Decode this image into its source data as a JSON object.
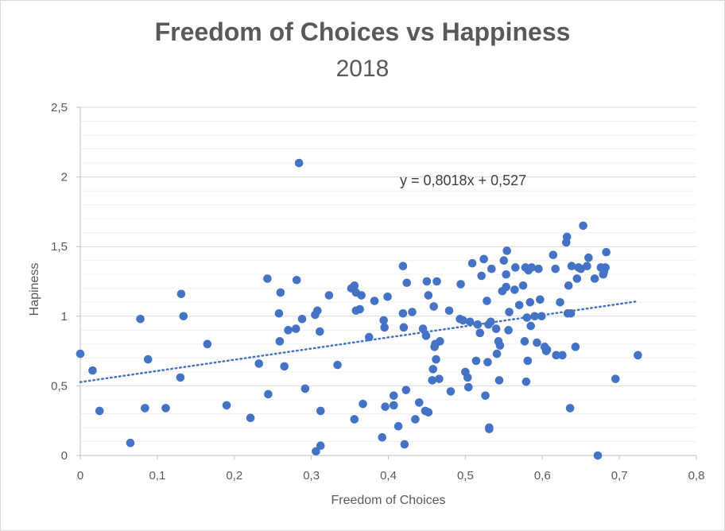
{
  "chart_data": {
    "type": "scatter",
    "title": "Freedom of Choices vs Happiness",
    "subtitle": "2018",
    "xlabel": "Freedom of Choices",
    "ylabel": "Hapiness",
    "xlim": [
      0,
      0.8
    ],
    "ylim": [
      0,
      2.5
    ],
    "x_ticks": [
      "0",
      "0,1",
      "0,2",
      "0,3",
      "0,4",
      "0,5",
      "0,6",
      "0,7",
      "0,8"
    ],
    "y_ticks": [
      "0",
      "0,5",
      "1",
      "1,5",
      "2",
      "2,5"
    ],
    "grid": true,
    "marker_color": "#4472c4",
    "trendline": {
      "slope": 0.8018,
      "intercept": 0.527,
      "x_range": [
        0,
        0.724
      ],
      "color": "#4472c4",
      "label": "y = 0,8018x + 0,527"
    },
    "points": [
      [
        0.0,
        0.73
      ],
      [
        0.016,
        0.61
      ],
      [
        0.025,
        0.32
      ],
      [
        0.065,
        0.09
      ],
      [
        0.078,
        0.98
      ],
      [
        0.084,
        0.34
      ],
      [
        0.088,
        0.69
      ],
      [
        0.111,
        0.34
      ],
      [
        0.13,
        0.56
      ],
      [
        0.131,
        1.16
      ],
      [
        0.134,
        1.0
      ],
      [
        0.165,
        0.8
      ],
      [
        0.19,
        0.36
      ],
      [
        0.221,
        0.27
      ],
      [
        0.232,
        0.66
      ],
      [
        0.243,
        1.27
      ],
      [
        0.244,
        0.44
      ],
      [
        0.258,
        1.02
      ],
      [
        0.259,
        0.82
      ],
      [
        0.26,
        1.17
      ],
      [
        0.265,
        0.64
      ],
      [
        0.27,
        0.9
      ],
      [
        0.28,
        0.91
      ],
      [
        0.281,
        1.26
      ],
      [
        0.284,
        2.1
      ],
      [
        0.288,
        0.98
      ],
      [
        0.292,
        0.48
      ],
      [
        0.305,
        1.01
      ],
      [
        0.306,
        0.03
      ],
      [
        0.308,
        1.04
      ],
      [
        0.311,
        0.89
      ],
      [
        0.312,
        0.07
      ],
      [
        0.312,
        0.32
      ],
      [
        0.323,
        1.15
      ],
      [
        0.334,
        0.65
      ],
      [
        0.352,
        1.2
      ],
      [
        0.356,
        1.22
      ],
      [
        0.356,
        0.26
      ],
      [
        0.358,
        1.17
      ],
      [
        0.358,
        1.04
      ],
      [
        0.363,
        1.05
      ],
      [
        0.365,
        1.15
      ],
      [
        0.367,
        0.37
      ],
      [
        0.375,
        0.85
      ],
      [
        0.382,
        1.11
      ],
      [
        0.392,
        0.13
      ],
      [
        0.394,
        0.97
      ],
      [
        0.395,
        0.92
      ],
      [
        0.396,
        0.35
      ],
      [
        0.399,
        1.14
      ],
      [
        0.407,
        0.36
      ],
      [
        0.407,
        0.43
      ],
      [
        0.413,
        0.21
      ],
      [
        0.419,
        1.36
      ],
      [
        0.419,
        1.02
      ],
      [
        0.42,
        0.92
      ],
      [
        0.421,
        0.08
      ],
      [
        0.423,
        0.47
      ],
      [
        0.424,
        1.24
      ],
      [
        0.431,
        1.03
      ],
      [
        0.435,
        0.26
      ],
      [
        0.44,
        0.38
      ],
      [
        0.445,
        0.91
      ],
      [
        0.448,
        0.32
      ],
      [
        0.449,
        0.86
      ],
      [
        0.45,
        1.25
      ],
      [
        0.452,
        1.15
      ],
      [
        0.452,
        0.31
      ],
      [
        0.457,
        0.54
      ],
      [
        0.458,
        0.62
      ],
      [
        0.459,
        1.07
      ],
      [
        0.46,
        0.78
      ],
      [
        0.461,
        0.8
      ],
      [
        0.462,
        0.69
      ],
      [
        0.463,
        1.25
      ],
      [
        0.466,
        0.55
      ],
      [
        0.467,
        0.82
      ],
      [
        0.479,
        1.04
      ],
      [
        0.481,
        0.46
      ],
      [
        0.493,
        0.98
      ],
      [
        0.494,
        1.23
      ],
      [
        0.497,
        0.97
      ],
      [
        0.5,
        0.6
      ],
      [
        0.503,
        0.56
      ],
      [
        0.504,
        0.49
      ],
      [
        0.506,
        0.96
      ],
      [
        0.509,
        1.38
      ],
      [
        0.514,
        0.68
      ],
      [
        0.516,
        0.94
      ],
      [
        0.519,
        0.88
      ],
      [
        0.521,
        1.29
      ],
      [
        0.524,
        1.41
      ],
      [
        0.526,
        0.43
      ],
      [
        0.528,
        1.11
      ],
      [
        0.529,
        0.67
      ],
      [
        0.53,
        0.94
      ],
      [
        0.531,
        0.19
      ],
      [
        0.531,
        0.2
      ],
      [
        0.533,
        0.96
      ],
      [
        0.534,
        1.34
      ],
      [
        0.54,
        0.91
      ],
      [
        0.541,
        0.73
      ],
      [
        0.543,
        0.82
      ],
      [
        0.544,
        0.54
      ],
      [
        0.545,
        0.79
      ],
      [
        0.548,
        1.18
      ],
      [
        0.55,
        1.4
      ],
      [
        0.553,
        1.21
      ],
      [
        0.553,
        1.3
      ],
      [
        0.554,
        1.47
      ],
      [
        0.556,
        0.9
      ],
      [
        0.557,
        1.03
      ],
      [
        0.564,
        1.19
      ],
      [
        0.565,
        1.35
      ],
      [
        0.57,
        1.08
      ],
      [
        0.575,
        1.22
      ],
      [
        0.577,
        0.82
      ],
      [
        0.578,
        1.35
      ],
      [
        0.579,
        0.53
      ],
      [
        0.58,
        0.99
      ],
      [
        0.581,
        0.68
      ],
      [
        0.582,
        1.33
      ],
      [
        0.584,
        1.1
      ],
      [
        0.585,
        0.93
      ],
      [
        0.586,
        1.35
      ],
      [
        0.59,
        1.0
      ],
      [
        0.593,
        0.81
      ],
      [
        0.595,
        1.34
      ],
      [
        0.597,
        1.12
      ],
      [
        0.599,
        1.0
      ],
      [
        0.603,
        0.78
      ],
      [
        0.605,
        0.75
      ],
      [
        0.606,
        0.76
      ],
      [
        0.614,
        1.44
      ],
      [
        0.617,
        1.34
      ],
      [
        0.618,
        0.72
      ],
      [
        0.623,
        1.1
      ],
      [
        0.626,
        0.72
      ],
      [
        0.631,
        1.53
      ],
      [
        0.632,
        1.57
      ],
      [
        0.633,
        1.02
      ],
      [
        0.634,
        1.22
      ],
      [
        0.636,
        0.34
      ],
      [
        0.637,
        1.02
      ],
      [
        0.638,
        1.36
      ],
      [
        0.643,
        0.78
      ],
      [
        0.645,
        1.27
      ],
      [
        0.647,
        1.35
      ],
      [
        0.65,
        1.34
      ],
      [
        0.653,
        1.65
      ],
      [
        0.658,
        1.36
      ],
      [
        0.66,
        1.42
      ],
      [
        0.668,
        1.27
      ],
      [
        0.672,
        0.0
      ],
      [
        0.676,
        1.35
      ],
      [
        0.679,
        1.3
      ],
      [
        0.68,
        1.32
      ],
      [
        0.682,
        1.35
      ],
      [
        0.683,
        1.46
      ],
      [
        0.695,
        0.55
      ],
      [
        0.724,
        0.72
      ]
    ]
  }
}
